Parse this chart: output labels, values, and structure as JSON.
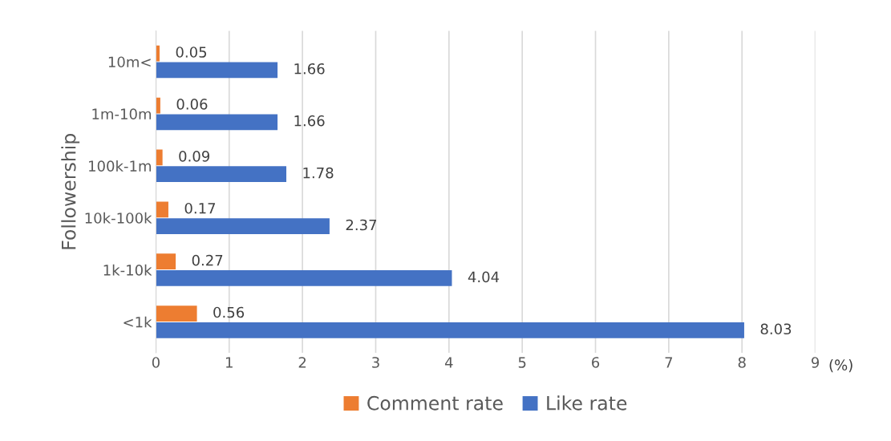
{
  "chart_data": {
    "type": "bar",
    "orientation": "horizontal",
    "ylabel": "Followership",
    "xlabel": "(%)",
    "categories": [
      "10m<",
      "1m-10m",
      "100k-1m",
      "10k-100k",
      "1k-10k",
      "<1k"
    ],
    "series": [
      {
        "name": "Comment rate",
        "color": "#ed7d31",
        "values": [
          0.05,
          0.06,
          0.09,
          0.17,
          0.27,
          0.56
        ]
      },
      {
        "name": "Like rate",
        "color": "#4472c4",
        "values": [
          1.66,
          1.66,
          1.78,
          2.37,
          4.04,
          8.03
        ]
      }
    ],
    "xlim": [
      0,
      9
    ],
    "xticks": [
      0,
      1,
      2,
      3,
      4,
      5,
      6,
      7,
      8,
      9
    ],
    "grid": "x",
    "legend": "bottom",
    "data_labels": true
  }
}
